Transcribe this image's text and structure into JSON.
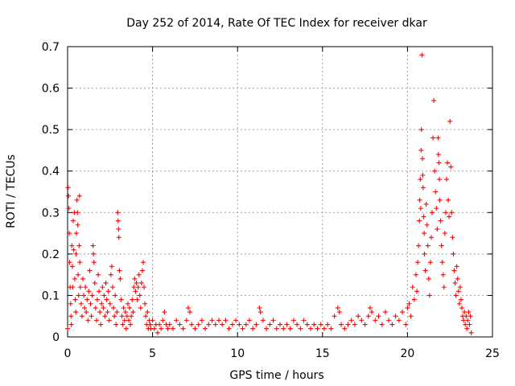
{
  "chart_data": {
    "type": "scatter",
    "title": "Day 252 of 2014, Rate Of TEC Index for receiver dkar",
    "xlabel": "GPS time / hours",
    "ylabel": "ROTI / TECUs",
    "xlim": [
      0,
      25
    ],
    "ylim": [
      0,
      0.7
    ],
    "xticks": [
      0,
      5,
      10,
      15,
      20,
      25
    ],
    "yticks": [
      0,
      0.1,
      0.2,
      0.3,
      0.4,
      0.5,
      0.6,
      0.7
    ],
    "xtick_labels": [
      "0",
      "5",
      "10",
      "15",
      "20",
      "25"
    ],
    "ytick_labels": [
      "0",
      "0.1",
      "0.2",
      "0.3",
      "0.4",
      "0.5",
      "0.6",
      "0.7"
    ],
    "grid": true,
    "marker": "plus",
    "series_color": "#ff0000",
    "series": [
      {
        "points": [
          [
            0.0,
            0.02
          ],
          [
            0.03,
            0.36
          ],
          [
            0.05,
            0.34
          ],
          [
            0.08,
            0.31
          ],
          [
            0.1,
            0.25
          ],
          [
            0.12,
            0.18
          ],
          [
            0.15,
            0.12
          ],
          [
            0.18,
            0.08
          ],
          [
            0.2,
            0.05
          ],
          [
            0.22,
            0.03
          ],
          [
            0.25,
            0.22
          ],
          [
            0.28,
            0.17
          ],
          [
            0.3,
            0.12
          ],
          [
            0.33,
            0.28
          ],
          [
            0.36,
            0.21
          ],
          [
            0.4,
            0.3
          ],
          [
            0.42,
            0.14
          ],
          [
            0.45,
            0.09
          ],
          [
            0.48,
            0.06
          ],
          [
            0.5,
            0.2
          ],
          [
            0.52,
            0.25
          ],
          [
            0.55,
            0.33
          ],
          [
            0.58,
            0.3
          ],
          [
            0.6,
            0.27
          ],
          [
            0.62,
            0.15
          ],
          [
            0.65,
            0.1
          ],
          [
            0.68,
            0.22
          ],
          [
            0.7,
            0.34
          ],
          [
            0.72,
            0.18
          ],
          [
            0.75,
            0.12
          ],
          [
            0.8,
            0.08
          ],
          [
            0.85,
            0.05
          ],
          [
            0.9,
            0.14
          ],
          [
            0.95,
            0.1
          ],
          [
            1.0,
            0.07
          ],
          [
            1.05,
            0.12
          ],
          [
            1.1,
            0.06
          ],
          [
            1.15,
            0.09
          ],
          [
            1.2,
            0.04
          ],
          [
            1.25,
            0.11
          ],
          [
            1.3,
            0.16
          ],
          [
            1.35,
            0.08
          ],
          [
            1.4,
            0.05
          ],
          [
            1.45,
            0.1
          ],
          [
            1.5,
            0.22
          ],
          [
            1.52,
            0.2
          ],
          [
            1.55,
            0.18
          ],
          [
            1.6,
            0.13
          ],
          [
            1.65,
            0.07
          ],
          [
            1.7,
            0.04
          ],
          [
            1.75,
            0.09
          ],
          [
            1.8,
            0.15
          ],
          [
            1.85,
            0.11
          ],
          [
            1.9,
            0.06
          ],
          [
            1.95,
            0.03
          ],
          [
            2.0,
            0.08
          ],
          [
            2.05,
            0.12
          ],
          [
            2.1,
            0.07
          ],
          [
            2.15,
            0.1
          ],
          [
            2.2,
            0.05
          ],
          [
            2.25,
            0.13
          ],
          [
            2.3,
            0.09
          ],
          [
            2.35,
            0.06
          ],
          [
            2.4,
            0.11
          ],
          [
            2.45,
            0.04
          ],
          [
            2.5,
            0.08
          ],
          [
            2.55,
            0.15
          ],
          [
            2.6,
            0.17
          ],
          [
            2.65,
            0.12
          ],
          [
            2.7,
            0.07
          ],
          [
            2.75,
            0.05
          ],
          [
            2.8,
            0.1
          ],
          [
            2.85,
            0.03
          ],
          [
            2.9,
            0.06
          ],
          [
            2.95,
            0.3
          ],
          [
            2.97,
            0.28
          ],
          [
            3.0,
            0.26
          ],
          [
            3.02,
            0.24
          ],
          [
            3.05,
            0.16
          ],
          [
            3.1,
            0.14
          ],
          [
            3.15,
            0.09
          ],
          [
            3.2,
            0.05
          ],
          [
            3.25,
            0.03
          ],
          [
            3.3,
            0.07
          ],
          [
            3.35,
            0.04
          ],
          [
            3.4,
            0.06
          ],
          [
            3.45,
            0.02
          ],
          [
            3.5,
            0.05
          ],
          [
            3.55,
            0.08
          ],
          [
            3.6,
            0.04
          ],
          [
            3.65,
            0.07
          ],
          [
            3.7,
            0.03
          ],
          [
            3.75,
            0.05
          ],
          [
            3.8,
            0.09
          ],
          [
            3.85,
            0.06
          ],
          [
            3.9,
            0.12
          ],
          [
            3.95,
            0.14
          ],
          [
            4.0,
            0.11
          ],
          [
            4.05,
            0.13
          ],
          [
            4.1,
            0.09
          ],
          [
            4.15,
            0.12
          ],
          [
            4.2,
            0.15
          ],
          [
            4.25,
            0.1
          ],
          [
            4.3,
            0.07
          ],
          [
            4.35,
            0.13
          ],
          [
            4.4,
            0.16
          ],
          [
            4.45,
            0.18
          ],
          [
            4.5,
            0.12
          ],
          [
            4.55,
            0.08
          ],
          [
            4.6,
            0.05
          ],
          [
            4.65,
            0.03
          ],
          [
            4.7,
            0.06
          ],
          [
            4.75,
            0.02
          ],
          [
            4.8,
            0.04
          ],
          [
            4.85,
            0.03
          ],
          [
            4.9,
            0.02
          ],
          [
            5.0,
            0.04
          ],
          [
            5.1,
            0.02
          ],
          [
            5.2,
            0.03
          ],
          [
            5.3,
            0.01
          ],
          [
            5.4,
            0.03
          ],
          [
            5.5,
            0.02
          ],
          [
            5.6,
            0.04
          ],
          [
            5.7,
            0.06
          ],
          [
            5.8,
            0.03
          ],
          [
            5.9,
            0.02
          ],
          [
            6.0,
            0.03
          ],
          [
            6.2,
            0.02
          ],
          [
            6.4,
            0.04
          ],
          [
            6.6,
            0.03
          ],
          [
            6.8,
            0.02
          ],
          [
            7.0,
            0.04
          ],
          [
            7.1,
            0.07
          ],
          [
            7.2,
            0.06
          ],
          [
            7.3,
            0.03
          ],
          [
            7.5,
            0.02
          ],
          [
            7.7,
            0.03
          ],
          [
            7.9,
            0.04
          ],
          [
            8.1,
            0.02
          ],
          [
            8.3,
            0.03
          ],
          [
            8.5,
            0.04
          ],
          [
            8.7,
            0.03
          ],
          [
            8.9,
            0.04
          ],
          [
            9.1,
            0.03
          ],
          [
            9.3,
            0.04
          ],
          [
            9.5,
            0.02
          ],
          [
            9.7,
            0.03
          ],
          [
            9.9,
            0.04
          ],
          [
            10.1,
            0.03
          ],
          [
            10.3,
            0.02
          ],
          [
            10.5,
            0.03
          ],
          [
            10.7,
            0.04
          ],
          [
            10.9,
            0.02
          ],
          [
            11.1,
            0.03
          ],
          [
            11.3,
            0.07
          ],
          [
            11.35,
            0.06
          ],
          [
            11.5,
            0.04
          ],
          [
            11.7,
            0.02
          ],
          [
            11.9,
            0.03
          ],
          [
            12.1,
            0.04
          ],
          [
            12.3,
            0.02
          ],
          [
            12.5,
            0.03
          ],
          [
            12.7,
            0.02
          ],
          [
            12.9,
            0.03
          ],
          [
            13.1,
            0.02
          ],
          [
            13.3,
            0.04
          ],
          [
            13.5,
            0.03
          ],
          [
            13.7,
            0.02
          ],
          [
            13.9,
            0.04
          ],
          [
            14.1,
            0.03
          ],
          [
            14.3,
            0.02
          ],
          [
            14.5,
            0.03
          ],
          [
            14.7,
            0.02
          ],
          [
            14.9,
            0.03
          ],
          [
            15.1,
            0.02
          ],
          [
            15.3,
            0.03
          ],
          [
            15.5,
            0.02
          ],
          [
            15.7,
            0.05
          ],
          [
            15.9,
            0.07
          ],
          [
            16.0,
            0.06
          ],
          [
            16.1,
            0.03
          ],
          [
            16.3,
            0.02
          ],
          [
            16.5,
            0.03
          ],
          [
            16.7,
            0.04
          ],
          [
            16.9,
            0.03
          ],
          [
            17.1,
            0.05
          ],
          [
            17.3,
            0.04
          ],
          [
            17.5,
            0.03
          ],
          [
            17.7,
            0.05
          ],
          [
            17.8,
            0.07
          ],
          [
            17.9,
            0.06
          ],
          [
            18.1,
            0.04
          ],
          [
            18.3,
            0.05
          ],
          [
            18.5,
            0.03
          ],
          [
            18.7,
            0.06
          ],
          [
            18.9,
            0.04
          ],
          [
            19.1,
            0.03
          ],
          [
            19.3,
            0.05
          ],
          [
            19.5,
            0.04
          ],
          [
            19.7,
            0.06
          ],
          [
            19.9,
            0.03
          ],
          [
            20.0,
            0.07
          ],
          [
            20.1,
            0.08
          ],
          [
            20.2,
            0.05
          ],
          [
            20.3,
            0.12
          ],
          [
            20.4,
            0.09
          ],
          [
            20.5,
            0.15
          ],
          [
            20.55,
            0.11
          ],
          [
            20.6,
            0.18
          ],
          [
            20.65,
            0.22
          ],
          [
            20.7,
            0.28
          ],
          [
            20.72,
            0.33
          ],
          [
            20.75,
            0.38
          ],
          [
            20.78,
            0.31
          ],
          [
            20.8,
            0.45
          ],
          [
            20.82,
            0.5
          ],
          [
            20.85,
            0.68
          ],
          [
            20.88,
            0.43
          ],
          [
            20.9,
            0.39
          ],
          [
            20.92,
            0.36
          ],
          [
            20.95,
            0.29
          ],
          [
            20.98,
            0.25
          ],
          [
            21.0,
            0.2
          ],
          [
            21.05,
            0.16
          ],
          [
            21.1,
            0.32
          ],
          [
            21.15,
            0.27
          ],
          [
            21.2,
            0.22
          ],
          [
            21.25,
            0.14
          ],
          [
            21.3,
            0.1
          ],
          [
            21.35,
            0.18
          ],
          [
            21.4,
            0.24
          ],
          [
            21.45,
            0.3
          ],
          [
            21.5,
            0.48
          ],
          [
            21.55,
            0.57
          ],
          [
            21.6,
            0.4
          ],
          [
            21.65,
            0.35
          ],
          [
            21.7,
            0.31
          ],
          [
            21.75,
            0.26
          ],
          [
            21.8,
            0.48
          ],
          [
            21.82,
            0.44
          ],
          [
            21.85,
            0.42
          ],
          [
            21.88,
            0.38
          ],
          [
            21.9,
            0.33
          ],
          [
            21.95,
            0.28
          ],
          [
            22.0,
            0.22
          ],
          [
            22.05,
            0.18
          ],
          [
            22.1,
            0.15
          ],
          [
            22.15,
            0.12
          ],
          [
            22.2,
            0.25
          ],
          [
            22.25,
            0.3
          ],
          [
            22.3,
            0.38
          ],
          [
            22.35,
            0.42
          ],
          [
            22.4,
            0.33
          ],
          [
            22.45,
            0.29
          ],
          [
            22.5,
            0.52
          ],
          [
            22.55,
            0.41
          ],
          [
            22.6,
            0.3
          ],
          [
            22.65,
            0.24
          ],
          [
            22.7,
            0.2
          ],
          [
            22.75,
            0.16
          ],
          [
            22.8,
            0.13
          ],
          [
            22.85,
            0.1
          ],
          [
            22.9,
            0.17
          ],
          [
            22.95,
            0.14
          ],
          [
            23.0,
            0.11
          ],
          [
            23.05,
            0.08
          ],
          [
            23.1,
            0.12
          ],
          [
            23.15,
            0.09
          ],
          [
            23.2,
            0.07
          ],
          [
            23.25,
            0.05
          ],
          [
            23.3,
            0.04
          ],
          [
            23.35,
            0.06
          ],
          [
            23.4,
            0.03
          ],
          [
            23.45,
            0.05
          ],
          [
            23.5,
            0.02
          ],
          [
            23.55,
            0.04
          ],
          [
            23.6,
            0.06
          ],
          [
            23.65,
            0.03
          ],
          [
            23.7,
            0.05
          ],
          [
            23.75,
            0.01
          ]
        ]
      }
    ]
  }
}
